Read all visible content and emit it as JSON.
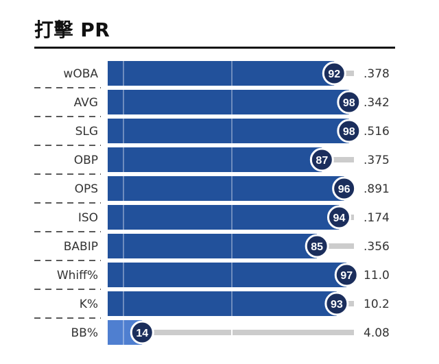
{
  "title": "打擊 PR",
  "colors": {
    "bar_dark": "#22519b",
    "bar_light": "#4f7fd0",
    "badge": "#1b2e5c",
    "track": "#cccccc",
    "text": "#333333"
  },
  "chart_data": {
    "type": "bar",
    "orientation": "horizontal",
    "title": "打擊 PR",
    "xlim": [
      0,
      100
    ],
    "categories": [
      "wOBA",
      "AVG",
      "SLG",
      "OBP",
      "OPS",
      "ISO",
      "BABIP",
      "Whiff%",
      "K%",
      "BB%"
    ],
    "values": [
      92,
      98,
      98,
      87,
      96,
      94,
      85,
      97,
      93,
      14
    ],
    "stat_values": [
      ".378",
      ".342",
      ".516",
      ".375",
      ".891",
      ".174",
      ".356",
      "11.0",
      "10.2",
      "4.08"
    ],
    "grid": true
  }
}
